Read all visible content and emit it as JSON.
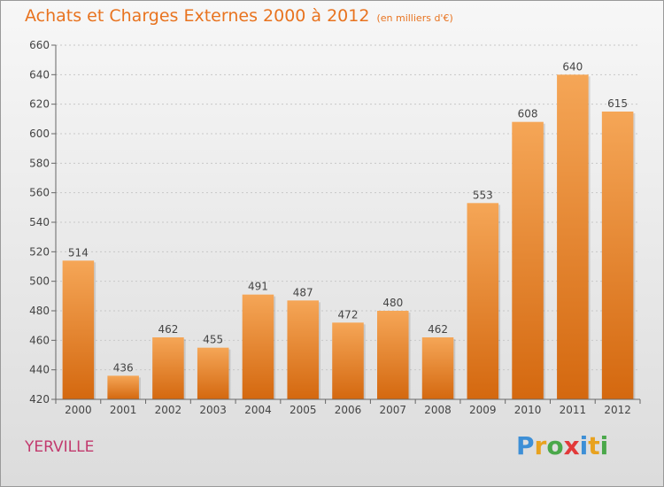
{
  "header": {
    "title": "Achats et Charges Externes 2000 à 2012",
    "subtitle": "(en milliers d'€)"
  },
  "footer": {
    "commune": "YERVILLE",
    "logo": {
      "letters": [
        "P",
        "r",
        "o",
        "x",
        "i",
        "t",
        "i"
      ],
      "colors": [
        "#3d8fd6",
        "#e8a21f",
        "#4aa84a",
        "#e23a3a",
        "#3d8fd6",
        "#e8a21f",
        "#4aa84a"
      ]
    }
  },
  "chart_data": {
    "type": "bar",
    "title": "Achats et Charges Externes 2000 à 2012",
    "subtitle": "(en milliers d'€)",
    "categories": [
      "2000",
      "2001",
      "2002",
      "2003",
      "2004",
      "2005",
      "2006",
      "2007",
      "2008",
      "2009",
      "2010",
      "2011",
      "2012"
    ],
    "values": [
      514,
      436,
      462,
      455,
      491,
      487,
      472,
      480,
      462,
      553,
      608,
      640,
      615
    ],
    "xlabel": "",
    "ylabel": "",
    "ylim": [
      420,
      660
    ],
    "yticks": [
      420,
      440,
      460,
      480,
      500,
      520,
      540,
      560,
      580,
      600,
      620,
      640,
      660
    ],
    "grid": true,
    "bar_color": "#e8801f"
  }
}
